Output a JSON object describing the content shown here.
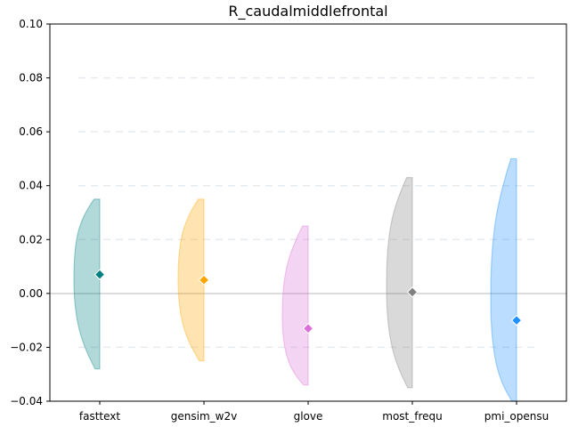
{
  "chart_data": {
    "type": "violin",
    "title": "R_caudalmiddlefrontal",
    "xlabel": "",
    "ylabel": "",
    "ylim": [
      -0.04,
      0.1
    ],
    "yticks": [
      -0.04,
      -0.02,
      0.0,
      0.02,
      0.04,
      0.06,
      0.08,
      0.1
    ],
    "ytick_labels": [
      "−0.04",
      "−0.02",
      "0.00",
      "0.02",
      "0.04",
      "0.06",
      "0.08",
      "0.10"
    ],
    "grid": "horizontal dashed",
    "reference_line_y": 0.0,
    "categories": [
      "fasttext",
      "gensim_w2v",
      "glove",
      "most_frequ",
      "pmi_opensu"
    ],
    "series": [
      {
        "category": "fasttext",
        "mean": 0.007,
        "min": -0.028,
        "max": 0.035,
        "color": "#008080"
      },
      {
        "category": "gensim_w2v",
        "mean": 0.005,
        "min": -0.025,
        "max": 0.035,
        "color": "#FFA500"
      },
      {
        "category": "glove",
        "mean": -0.013,
        "min": -0.034,
        "max": 0.025,
        "color": "#DA70D6"
      },
      {
        "category": "most_frequ",
        "mean": 0.0005,
        "min": -0.035,
        "max": 0.043,
        "color": "#808080"
      },
      {
        "category": "pmi_opensu",
        "mean": -0.01,
        "min": -0.042,
        "max": 0.05,
        "color": "#1E90FF"
      }
    ]
  }
}
